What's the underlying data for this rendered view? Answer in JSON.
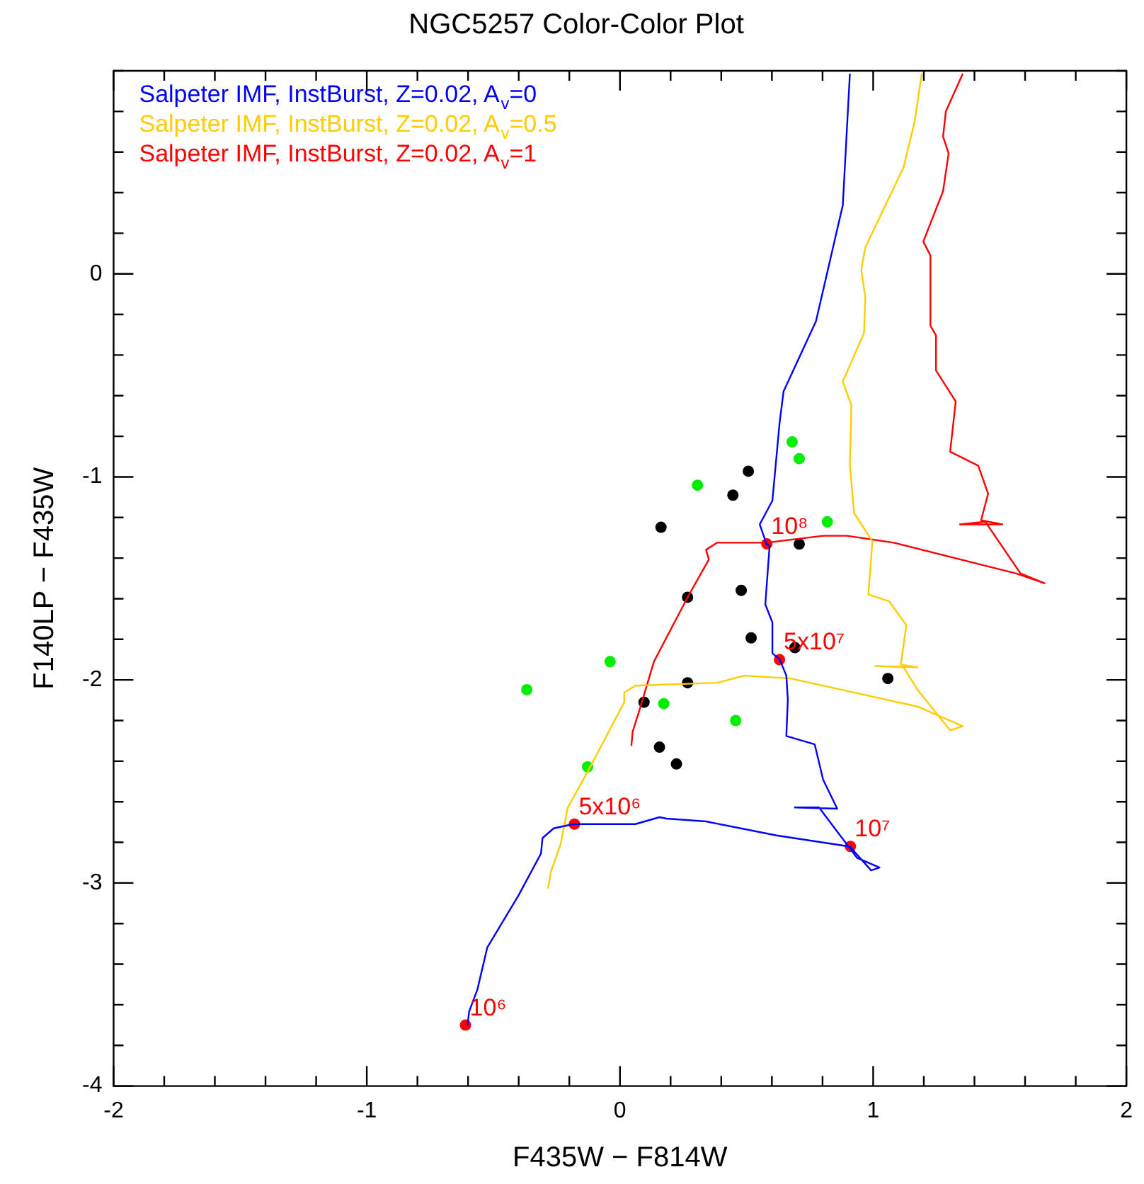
{
  "chart_data": {
    "type": "scatter",
    "title": "NGC5257 Color-Color Plot",
    "xlabel": "F435W − F814W",
    "ylabel": "F140LP − F435W",
    "xlim": [
      -2,
      2
    ],
    "ylim": [
      -4,
      1
    ],
    "xticks": [
      -2,
      {
        "value": -1.8,
        "label": null
      },
      {
        "value": -1.6,
        "label": null
      },
      {
        "value": -1.4,
        "label": null
      },
      {
        "value": -1.2,
        "label": null
      },
      -1,
      {
        "value": -0.8,
        "label": null
      },
      {
        "value": -0.6,
        "label": null
      },
      {
        "value": -0.4,
        "label": null
      },
      {
        "value": -0.2,
        "label": null
      },
      0,
      {
        "value": 0.2,
        "label": null
      },
      {
        "value": 0.4,
        "label": null
      },
      {
        "value": 0.6,
        "label": null
      },
      {
        "value": 0.8,
        "label": null
      },
      1,
      {
        "value": 1.2,
        "label": null
      },
      {
        "value": 1.4,
        "label": null
      },
      {
        "value": 1.6,
        "label": null
      },
      {
        "value": 1.8,
        "label": null
      },
      2
    ],
    "yticks": [
      -4,
      {
        "value": -3.8,
        "label": null
      },
      {
        "value": -3.6,
        "label": null
      },
      {
        "value": -3.4,
        "label": null
      },
      {
        "value": -3.2,
        "label": null
      },
      -3,
      {
        "value": -2.8,
        "label": null
      },
      {
        "value": -2.6,
        "label": null
      },
      {
        "value": -2.4,
        "label": null
      },
      {
        "value": -2.2,
        "label": null
      },
      -2,
      {
        "value": -1.8,
        "label": null
      },
      {
        "value": -1.6,
        "label": null
      },
      {
        "value": -1.4,
        "label": null
      },
      {
        "value": -1.2,
        "label": null
      },
      -1,
      {
        "value": -0.8,
        "label": null
      },
      {
        "value": -0.6,
        "label": null
      },
      {
        "value": -0.4,
        "label": null
      },
      {
        "value": -0.2,
        "label": null
      },
      0,
      {
        "value": 0.2,
        "label": null
      },
      {
        "value": 0.4,
        "label": null
      },
      {
        "value": 0.6,
        "label": null
      },
      {
        "value": 0.8,
        "label": null
      },
      {
        "value": 1,
        "label": null
      }
    ],
    "grid": false,
    "legend": "top left",
    "series": [
      {
        "type": "line",
        "name": "Salpeter IMF, InstBurst, Z=0.02, A$_{v}$=0",
        "color": "#0000ff",
        "marker": "none",
        "x": [
          -0.602,
          -0.596,
          -0.563,
          -0.524,
          -0.401,
          -0.312,
          -0.306,
          -0.262,
          -0.184,
          0.061,
          0.156,
          0.184,
          0.34,
          0.618,
          0.908,
          0.992,
          1.025,
          0.936,
          0.786,
          0.691,
          0.858,
          0.802,
          0.769,
          0.657,
          0.663,
          0.657,
          0.63,
          0.602,
          0.602,
          0.574,
          0.591,
          0.579,
          0.552,
          0.602,
          0.63,
          0.646,
          0.774,
          0.88,
          0.908
        ],
        "values": [
          -3.703,
          -3.634,
          -3.524,
          -3.317,
          -3.062,
          -2.855,
          -2.779,
          -2.731,
          -2.71,
          -2.71,
          -2.676,
          -2.683,
          -2.697,
          -2.766,
          -2.821,
          -2.938,
          -2.924,
          -2.876,
          -2.628,
          -2.628,
          -2.634,
          -2.49,
          -2.317,
          -2.276,
          -2.097,
          -1.979,
          -1.897,
          -1.869,
          -1.717,
          -1.628,
          -1.338,
          -1.331,
          -1.234,
          -1.117,
          -0.738,
          -0.579,
          -0.234,
          0.338,
          0.986
        ]
      },
      {
        "type": "line",
        "name": "Salpeter IMF, InstBurst, Z=0.02, A$_{v}$=0.5",
        "color": "#ffcc00",
        "marker": "none",
        "x": [
          -0.284,
          -0.273,
          -0.234,
          -0.206,
          -0.123,
          0.017,
          0.017,
          0.061,
          0.384,
          0.49,
          0.674,
          1.175,
          1.354,
          1.304,
          1.175,
          1.12,
          1.008,
          1.175,
          1.109,
          1.131,
          1.064,
          0.981,
          0.997,
          0.925,
          0.908,
          0.914,
          0.88,
          0.964,
          0.969,
          0.953,
          0.969,
          1.12,
          1.164,
          1.192
        ],
        "values": [
          -3.028,
          -2.945,
          -2.807,
          -2.628,
          -2.441,
          -2.11,
          -2.062,
          -2.028,
          -2.014,
          -1.979,
          -1.993,
          -2.131,
          -2.228,
          -2.248,
          -2.048,
          -1.938,
          -1.931,
          -1.938,
          -1.924,
          -1.731,
          -1.614,
          -1.579,
          -1.317,
          -1.179,
          -0.945,
          -0.648,
          -0.531,
          -0.29,
          -0.117,
          0.021,
          0.131,
          0.524,
          0.752,
          0.986
        ]
      },
      {
        "type": "line",
        "name": "Salpeter IMF, InstBurst, Z=0.02, A$_{v}$=1",
        "color": "#ff0000",
        "marker": "none",
        "x": [
          0.045,
          0.05,
          0.078,
          0.134,
          0.267,
          0.351,
          0.34,
          0.384,
          0.579,
          0.802,
          0.897,
          1.081,
          1.565,
          1.677,
          1.582,
          1.443,
          1.343,
          1.51,
          1.426,
          1.454,
          1.415,
          1.304,
          1.326,
          1.248,
          1.248,
          1.226,
          1.226,
          1.198,
          1.276,
          1.298,
          1.276,
          1.287,
          1.354
        ],
        "values": [
          -2.324,
          -2.255,
          -2.145,
          -1.91,
          -1.593,
          -1.407,
          -1.359,
          -1.324,
          -1.324,
          -1.29,
          -1.29,
          -1.324,
          -1.476,
          -1.524,
          -1.476,
          -1.221,
          -1.234,
          -1.234,
          -1.214,
          -1.083,
          -0.945,
          -0.876,
          -0.628,
          -0.476,
          -0.303,
          -0.255,
          0.09,
          0.159,
          0.407,
          0.593,
          0.676,
          0.8,
          0.986
        ]
      },
      {
        "type": "scatter",
        "color": "#000000",
        "marker": "circle",
        "x": [
          0.507,
          0.446,
          0.162,
          0.708,
          0.267,
          0.479,
          0.518,
          0.691,
          1.058,
          0.267,
          0.095,
          0.156,
          0.223
        ],
        "values": [
          -0.972,
          -1.09,
          -1.248,
          -1.331,
          -1.593,
          -1.559,
          -1.793,
          -1.841,
          -1.993,
          -2.014,
          -2.11,
          -2.331,
          -2.414
        ]
      },
      {
        "type": "scatter",
        "color": "#00ee00",
        "marker": "circle",
        "x": [
          0.68,
          0.708,
          0.306,
          0.819,
          -0.039,
          -0.368,
          0.173,
          0.457,
          -0.128
        ],
        "values": [
          -0.828,
          -0.91,
          -1.041,
          -1.221,
          -1.91,
          -2.048,
          -2.117,
          -2.2,
          -2.428
        ]
      },
      {
        "type": "scatter",
        "color": "#ff0000",
        "marker": "circle",
        "x": [
          -0.61,
          -0.18,
          0.91,
          0.63,
          0.58
        ],
        "values": [
          -3.7,
          -2.71,
          -2.82,
          -1.9,
          -1.33
        ]
      }
    ],
    "annotations": [
      {
        "text": "10⁶",
        "x": -0.61,
        "y": -3.7
      },
      {
        "text": "5x10⁶",
        "x": -0.18,
        "y": -2.71
      },
      {
        "text": "10⁷",
        "x": 0.91,
        "y": -2.82
      },
      {
        "text": "5x10⁷",
        "x": 0.63,
        "y": -1.9
      },
      {
        "text": "10⁸",
        "x": 0.58,
        "y": -1.33
      }
    ]
  }
}
